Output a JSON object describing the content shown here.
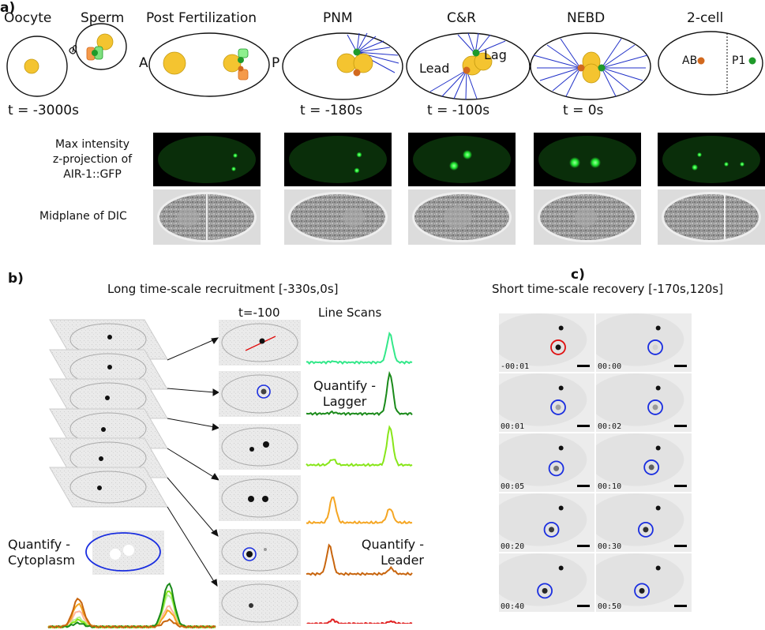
{
  "panel_a": {
    "letter": "a)",
    "stages": [
      {
        "label": "Oocyte"
      },
      {
        "label": "Sperm"
      },
      {
        "label": "Post Fertilization"
      },
      {
        "label": "PNM"
      },
      {
        "label": "C&R"
      },
      {
        "label": "NEBD"
      },
      {
        "label": "2-cell"
      }
    ],
    "axis_a": "A",
    "axis_p": "P",
    "lead": "Lead",
    "lag": "Lag",
    "ab": "AB",
    "p1": "P1",
    "times": [
      "t = -3000s",
      "t = -180s",
      "t = -100s",
      "t = 0s"
    ],
    "row_label_gfp": [
      "Max intensity",
      "z-projection of",
      "AIR-1::GFP"
    ],
    "row_label_dic": "Midplane of DIC",
    "colors": {
      "pronucleus": "#f4c430",
      "centrosome_green": "#1f9a2a",
      "centrosome_orange": "#d2691e",
      "microtubule": "#2030c8",
      "gfp_bg": "#000000",
      "gfp_signal": "#22ee33"
    }
  },
  "panel_b": {
    "letter": "b)",
    "title": "Long time-scale recruitment [-330s,0s]",
    "time_label": "t=-100",
    "line_scans": "Line Scans",
    "quantify_lagger": [
      "Quantify -",
      "Lagger"
    ],
    "quantify_leader": [
      "Quantify -",
      "Leader"
    ],
    "quantify_cytoplasm": [
      "Quantify -",
      "Cytoplasm"
    ],
    "scan_colors": [
      "#33e88a",
      "#1a8a1a",
      "#88e61a",
      "#f5a623",
      "#c8650e",
      "#e02020"
    ]
  },
  "panel_c": {
    "letter": "c)",
    "title": "Short time-scale recovery [-170s,120s]",
    "timestamps": [
      "-00:01",
      "00:00",
      "00:01",
      "00:02",
      "00:05",
      "00:10",
      "00:20",
      "00:30",
      "00:40",
      "00:50"
    ]
  }
}
